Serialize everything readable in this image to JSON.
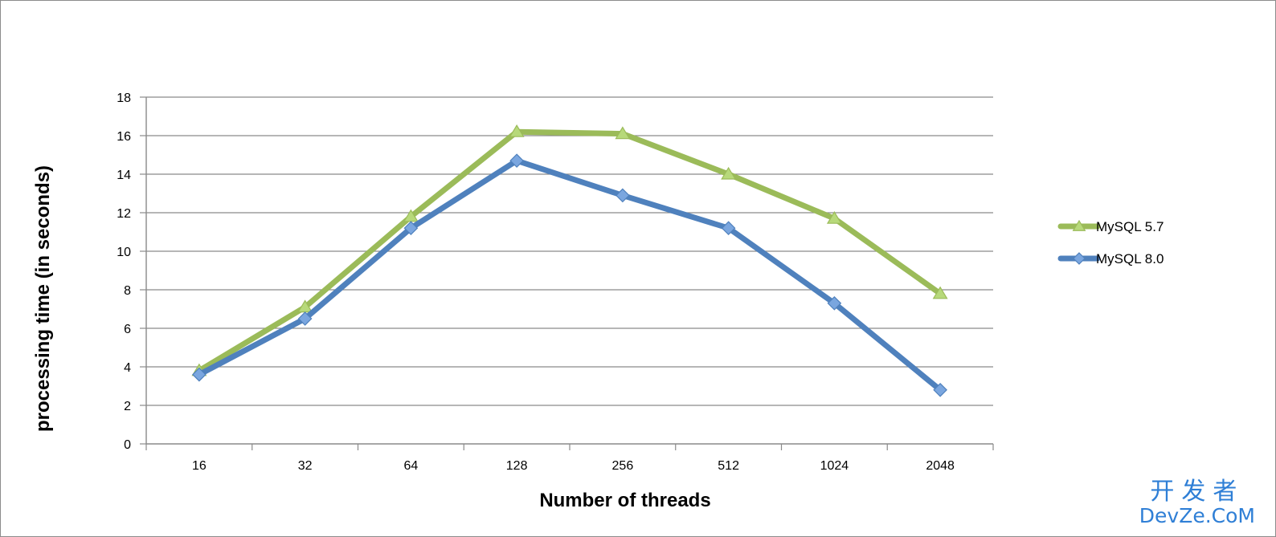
{
  "chart_data": {
    "type": "line",
    "categories": [
      "16",
      "32",
      "64",
      "128",
      "256",
      "512",
      "1024",
      "2048"
    ],
    "series": [
      {
        "name": "MySQL 5.7",
        "color": "#9bbb59",
        "marker": "triangle",
        "values": [
          3.8,
          7.1,
          11.8,
          16.2,
          16.1,
          14.0,
          11.7,
          7.8
        ]
      },
      {
        "name": "MySQL 8.0",
        "color": "#4f81bd",
        "marker": "diamond",
        "values": [
          3.6,
          6.5,
          11.2,
          14.7,
          12.9,
          11.2,
          7.3,
          2.8
        ]
      }
    ],
    "xlabel": "Number of threads",
    "ylabel": "processing time (in seconds)",
    "ylim": [
      0,
      18
    ],
    "yticks": [
      "0",
      "2",
      "4",
      "6",
      "8",
      "10",
      "12",
      "14",
      "16",
      "18"
    ],
    "grid": true,
    "legend_position": "right"
  },
  "watermark": {
    "line1": "开发者",
    "line2": "DevZe.CoM"
  }
}
